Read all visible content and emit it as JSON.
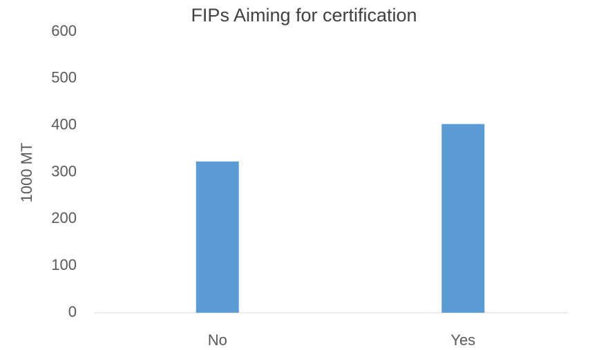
{
  "chart_data": {
    "type": "bar",
    "title": "FIPs Aiming for certification",
    "ylabel": "1000 MT",
    "categories": [
      "No",
      "Yes"
    ],
    "values": [
      323,
      403
    ],
    "color": "#5b9bd5",
    "ylim": [
      0,
      600
    ],
    "yticks": [
      0,
      100,
      200,
      300,
      400,
      500,
      600
    ],
    "grid": false
  }
}
